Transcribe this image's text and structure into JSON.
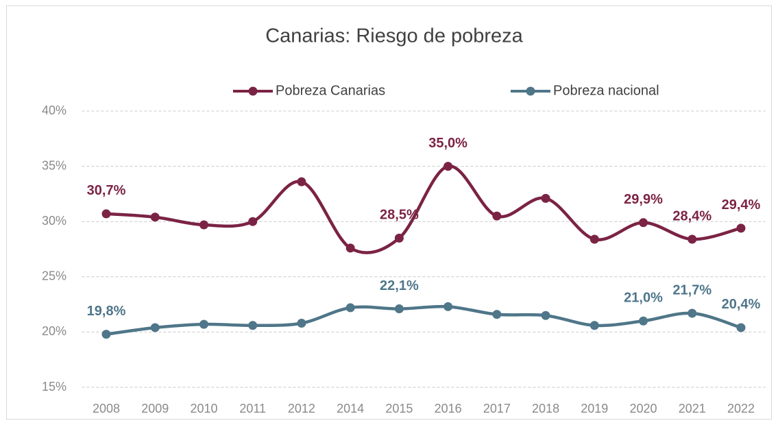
{
  "chart_data": {
    "type": "line",
    "title": "Canarias: Riesgo de pobreza",
    "categories": [
      "2008",
      "2009",
      "2010",
      "2011",
      "2012",
      "2014",
      "2015",
      "2016",
      "2017",
      "2018",
      "2019",
      "2020",
      "2021",
      "2022"
    ],
    "series": [
      {
        "name": "Pobreza Canarias",
        "color": "#7b2344",
        "values": [
          30.7,
          30.4,
          29.7,
          30.0,
          33.6,
          27.6,
          28.5,
          35.0,
          30.5,
          32.1,
          28.4,
          29.9,
          28.4,
          29.4
        ],
        "value_labels": [
          "30,7%",
          null,
          null,
          null,
          null,
          null,
          "28,5%",
          "35,0%",
          null,
          null,
          null,
          "29,9%",
          "28,4%",
          "29,4%"
        ]
      },
      {
        "name": "Pobreza nacional",
        "color": "#4f7689",
        "values": [
          19.8,
          20.4,
          20.7,
          20.6,
          20.8,
          22.2,
          22.1,
          22.3,
          21.6,
          21.5,
          20.6,
          21.0,
          21.7,
          20.4
        ],
        "value_labels": [
          "19,8%",
          null,
          null,
          null,
          null,
          null,
          "22,1%",
          null,
          null,
          null,
          null,
          "21,0%",
          "21,7%",
          "20,4%"
        ]
      }
    ],
    "ylim": [
      15,
      40
    ],
    "yticks": [
      {
        "value": 15,
        "label": "15%"
      },
      {
        "value": 20,
        "label": "20%"
      },
      {
        "value": 25,
        "label": "25%"
      },
      {
        "value": 30,
        "label": "30%"
      },
      {
        "value": 35,
        "label": "35%"
      },
      {
        "value": 40,
        "label": "40%"
      }
    ],
    "grid": true,
    "legend": "top"
  }
}
